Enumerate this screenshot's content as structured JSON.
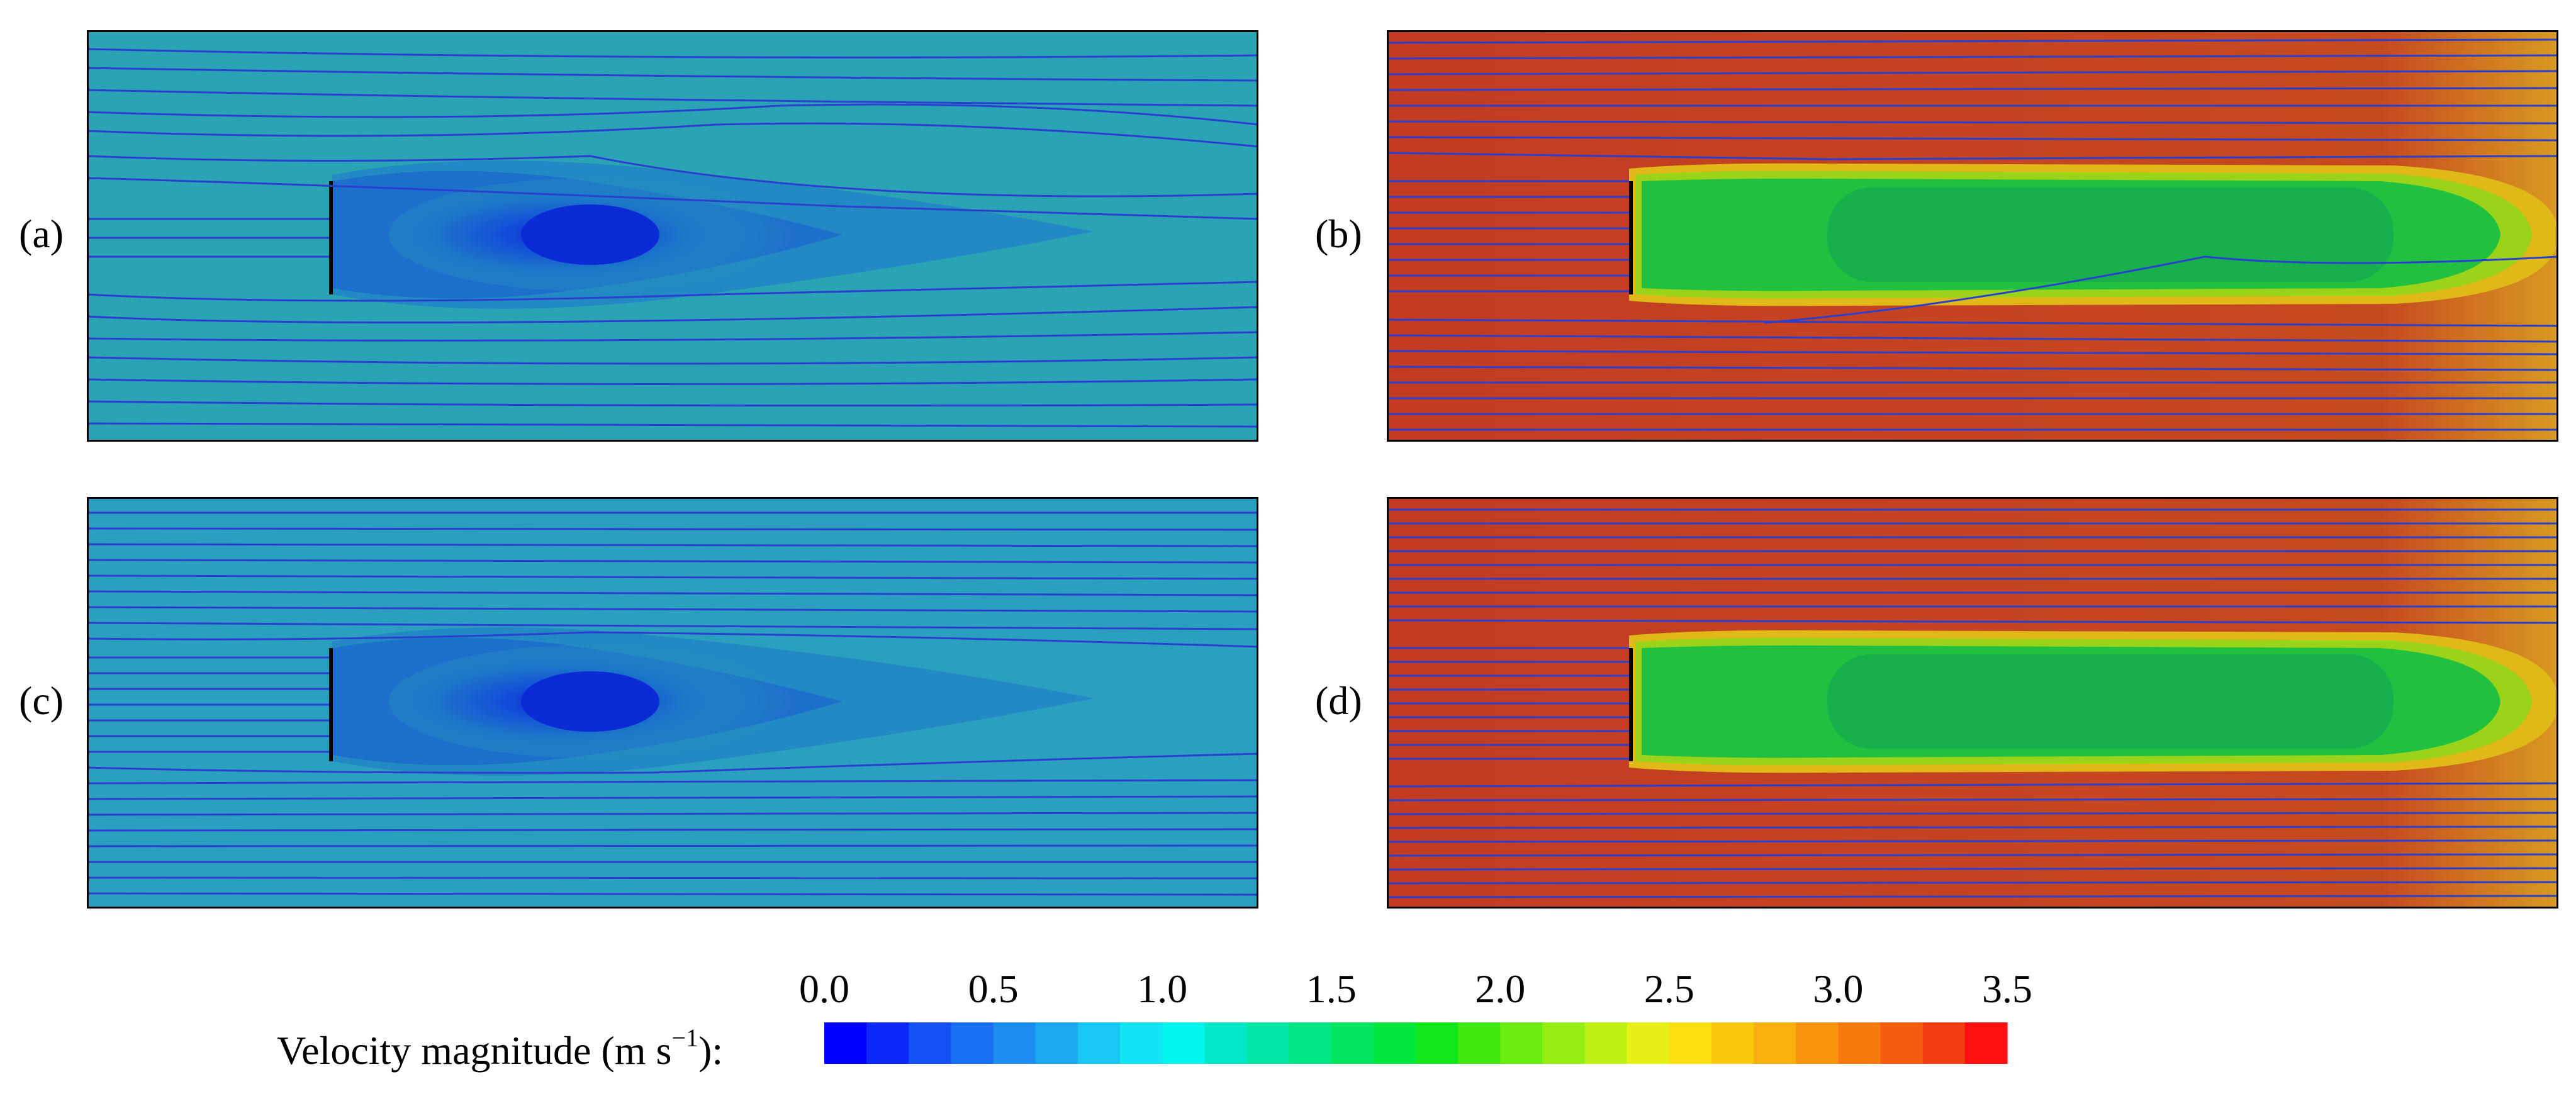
{
  "panels": [
    {
      "label": "(a)"
    },
    {
      "label": "(b)"
    },
    {
      "label": "(c)"
    },
    {
      "label": "(d)"
    }
  ],
  "colorbar": {
    "label_prefix": "Velocity magnitude (m s",
    "label_exp": "−1",
    "label_suffix": "):",
    "ticks": [
      "0.0",
      "0.5",
      "1.0",
      "1.5",
      "2.0",
      "2.5",
      "3.0",
      "3.5"
    ],
    "range": [
      0.0,
      3.5
    ],
    "n_levels": 28,
    "colors": [
      "#0000ff",
      "#0a28fa",
      "#1450f5",
      "#1a70f2",
      "#1c8cf0",
      "#1ca8f0",
      "#18c8f2",
      "#10e4f5",
      "#00f5ef",
      "#00e8c8",
      "#00e6a6",
      "#00e684",
      "#00e660",
      "#00e63c",
      "#10e81a",
      "#40ea10",
      "#6aec12",
      "#94ee14",
      "#bef016",
      "#e6f016",
      "#fbe012",
      "#fbc80e",
      "#fab00c",
      "#f8940c",
      "#f67a0e",
      "#f45c10",
      "#f23c12",
      "#ff1010"
    ]
  },
  "colors": {
    "low_bg": "#2aa3b5",
    "low_wake": "#1f78c8",
    "low_core": "#0a30d8",
    "high_bg": "#c23b22",
    "high_wake": "#18b84a",
    "high_edge": "#d6b21a",
    "streamline": "#2a3fd0"
  }
}
